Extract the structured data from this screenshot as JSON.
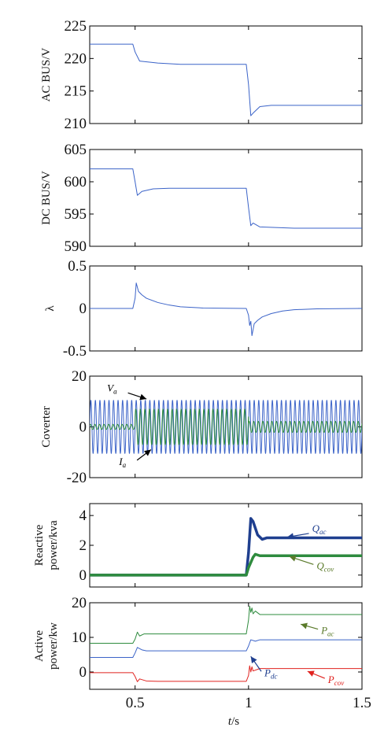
{
  "colors": {
    "blue": "#3b63c8",
    "green": "#2e8b3e",
    "red": "#e0221f",
    "darkblue": "#1f3f8f",
    "darkgreen": "#5a7a2a",
    "axis": "#000000"
  },
  "chart_data": [
    {
      "type": "line",
      "ylabel": "AC BUS/V",
      "ylim": [
        210,
        225
      ],
      "yticks": [
        "225",
        "220",
        "215",
        "210"
      ],
      "xlim": [
        0.3,
        1.5
      ],
      "series": [
        {
          "color": "blue",
          "points": [
            [
              0.3,
              222.2
            ],
            [
              0.49,
              222.2
            ],
            [
              0.5,
              221.0
            ],
            [
              0.52,
              219.6
            ],
            [
              0.6,
              219.3
            ],
            [
              0.7,
              219.1
            ],
            [
              0.99,
              219.1
            ],
            [
              1.0,
              216.0
            ],
            [
              1.01,
              211.2
            ],
            [
              1.02,
              211.6
            ],
            [
              1.05,
              212.6
            ],
            [
              1.1,
              212.8
            ],
            [
              1.5,
              212.8
            ]
          ]
        }
      ],
      "annotations": []
    },
    {
      "type": "line",
      "ylabel": "DC BUS/V",
      "ylim": [
        590,
        605
      ],
      "yticks": [
        "605",
        "600",
        "595",
        "590"
      ],
      "xlim": [
        0.3,
        1.5
      ],
      "series": [
        {
          "color": "blue",
          "points": [
            [
              0.3,
              602.0
            ],
            [
              0.49,
              602.0
            ],
            [
              0.5,
              600.0
            ],
            [
              0.51,
              597.9
            ],
            [
              0.53,
              598.5
            ],
            [
              0.58,
              598.9
            ],
            [
              0.65,
              599.0
            ],
            [
              0.99,
              599.0
            ],
            [
              1.0,
              596.0
            ],
            [
              1.01,
              593.2
            ],
            [
              1.02,
              593.6
            ],
            [
              1.05,
              593.0
            ],
            [
              1.2,
              592.8
            ],
            [
              1.5,
              592.8
            ]
          ]
        }
      ],
      "annotations": []
    },
    {
      "type": "line",
      "ylabel": "λ",
      "ylim": [
        -0.5,
        0.5
      ],
      "yticks": [
        "0.5",
        "0",
        "-0.5"
      ],
      "xlim": [
        0.3,
        1.5
      ],
      "series": [
        {
          "color": "blue",
          "points": [
            [
              0.3,
              0
            ],
            [
              0.49,
              0
            ],
            [
              0.5,
              0.12
            ],
            [
              0.505,
              0.3
            ],
            [
              0.515,
              0.2
            ],
            [
              0.53,
              0.16
            ],
            [
              0.55,
              0.12
            ],
            [
              0.6,
              0.07
            ],
            [
              0.65,
              0.04
            ],
            [
              0.7,
              0.02
            ],
            [
              0.8,
              0.005
            ],
            [
              0.99,
              0
            ],
            [
              1.0,
              -0.08
            ],
            [
              1.005,
              -0.2
            ],
            [
              1.01,
              -0.15
            ],
            [
              1.015,
              -0.32
            ],
            [
              1.025,
              -0.18
            ],
            [
              1.04,
              -0.14
            ],
            [
              1.06,
              -0.1
            ],
            [
              1.1,
              -0.06
            ],
            [
              1.15,
              -0.03
            ],
            [
              1.2,
              -0.015
            ],
            [
              1.3,
              -0.005
            ],
            [
              1.5,
              0
            ]
          ]
        }
      ],
      "annotations": []
    },
    {
      "type": "line",
      "ylabel": "Coverter",
      "ylim": [
        -20,
        20
      ],
      "yticks": [
        "20",
        "0",
        "-20"
      ],
      "xlim": [
        0.3,
        1.5
      ],
      "series": [
        {
          "name": "Va",
          "color": "blue",
          "waveform": {
            "amplitude": 10.5,
            "frequency_hz": 50
          }
        },
        {
          "name": "Ia",
          "color": "green",
          "waveform": {
            "frequency_hz": 50,
            "segments": [
              [
                0.3,
                0.5,
                1.0
              ],
              [
                0.5,
                1.0,
                7.0
              ],
              [
                1.0,
                1.5,
                2.2
              ]
            ]
          }
        }
      ],
      "annotations": [
        {
          "text": "V",
          "sub": "a",
          "at": [
            0.42,
            14
          ],
          "tip": [
            0.55,
            11
          ],
          "color": "axis"
        },
        {
          "text": "I",
          "sub": "a",
          "at": [
            0.46,
            -15
          ],
          "tip": [
            0.57,
            -9
          ],
          "color": "axis"
        }
      ]
    },
    {
      "type": "line",
      "ylabel": "Reactive power/kva",
      "ylim": [
        -0.8,
        4.8
      ],
      "yticks": [
        "4",
        "2",
        "0"
      ],
      "xlim": [
        0.3,
        1.5
      ],
      "series": [
        {
          "color": "darkblue",
          "width": 3.5,
          "points": [
            [
              0.3,
              0
            ],
            [
              0.99,
              0
            ],
            [
              1.0,
              1.5
            ],
            [
              1.01,
              3.8
            ],
            [
              1.02,
              3.6
            ],
            [
              1.04,
              2.7
            ],
            [
              1.06,
              2.4
            ],
            [
              1.08,
              2.5
            ],
            [
              1.5,
              2.5
            ]
          ]
        },
        {
          "color": "green",
          "width": 3.5,
          "points": [
            [
              0.3,
              0
            ],
            [
              0.99,
              0
            ],
            [
              1.0,
              0.5
            ],
            [
              1.02,
              1.2
            ],
            [
              1.03,
              1.4
            ],
            [
              1.05,
              1.3
            ],
            [
              1.5,
              1.3
            ]
          ]
        }
      ],
      "annotations": [
        {
          "text": "Q",
          "sub": "ac",
          "at": [
            1.28,
            2.9
          ],
          "tip": [
            1.17,
            2.55
          ],
          "color": "darkblue"
        },
        {
          "text": "Q",
          "sub": "cov",
          "at": [
            1.3,
            0.4
          ],
          "tip": [
            1.18,
            1.25
          ],
          "color": "darkgreen"
        }
      ]
    },
    {
      "type": "line",
      "ylabel": "Active power/kw",
      "ylim": [
        -5,
        20
      ],
      "yticks": [
        "20",
        "10",
        "0"
      ],
      "xlim": [
        0.3,
        1.5
      ],
      "series": [
        {
          "color": "green",
          "points": [
            [
              0.3,
              8.3
            ],
            [
              0.49,
              8.3
            ],
            [
              0.5,
              9.5
            ],
            [
              0.51,
              11.5
            ],
            [
              0.52,
              10.4
            ],
            [
              0.54,
              11.0
            ],
            [
              0.6,
              11.0
            ],
            [
              0.99,
              11.0
            ],
            [
              1.0,
              15.0
            ],
            [
              1.005,
              19.0
            ],
            [
              1.01,
              17.2
            ],
            [
              1.015,
              18.5
            ],
            [
              1.02,
              16.8
            ],
            [
              1.03,
              17.6
            ],
            [
              1.05,
              16.6
            ],
            [
              1.1,
              16.6
            ],
            [
              1.5,
              16.6
            ]
          ]
        },
        {
          "color": "blue",
          "points": [
            [
              0.3,
              4.2
            ],
            [
              0.49,
              4.2
            ],
            [
              0.5,
              5.5
            ],
            [
              0.51,
              7.1
            ],
            [
              0.53,
              6.4
            ],
            [
              0.55,
              6.1
            ],
            [
              0.99,
              6.1
            ],
            [
              1.0,
              7.5
            ],
            [
              1.01,
              9.3
            ],
            [
              1.03,
              8.9
            ],
            [
              1.05,
              9.3
            ],
            [
              1.5,
              9.3
            ]
          ]
        },
        {
          "color": "red",
          "points": [
            [
              0.3,
              -0.2
            ],
            [
              0.49,
              -0.2
            ],
            [
              0.5,
              -1.3
            ],
            [
              0.51,
              -2.8
            ],
            [
              0.52,
              -2.0
            ],
            [
              0.55,
              -2.6
            ],
            [
              0.6,
              -2.7
            ],
            [
              0.99,
              -2.7
            ],
            [
              1.0,
              -1.0
            ],
            [
              1.005,
              1.8
            ],
            [
              1.01,
              0.0
            ],
            [
              1.015,
              1.5
            ],
            [
              1.02,
              0.3
            ],
            [
              1.05,
              1.0
            ],
            [
              1.5,
              1.0
            ]
          ]
        }
      ],
      "annotations": [
        {
          "text": "P",
          "sub": "ac",
          "at": [
            1.32,
            11.0
          ],
          "tip": [
            1.23,
            13.8
          ],
          "color": "darkgreen"
        },
        {
          "text": "P",
          "sub": "dc",
          "at": [
            1.07,
            -1.2
          ],
          "tip": [
            1.01,
            4.5
          ],
          "color": "darkblue"
        },
        {
          "text": "P",
          "sub": "cov",
          "at": [
            1.35,
            -3.2
          ],
          "tip": [
            1.26,
            0.2
          ],
          "color": "red"
        }
      ]
    }
  ],
  "x_axis": {
    "ticks": [
      "0.5",
      "1",
      "1.5"
    ],
    "label_main": "t",
    "label_unit": "/s"
  }
}
